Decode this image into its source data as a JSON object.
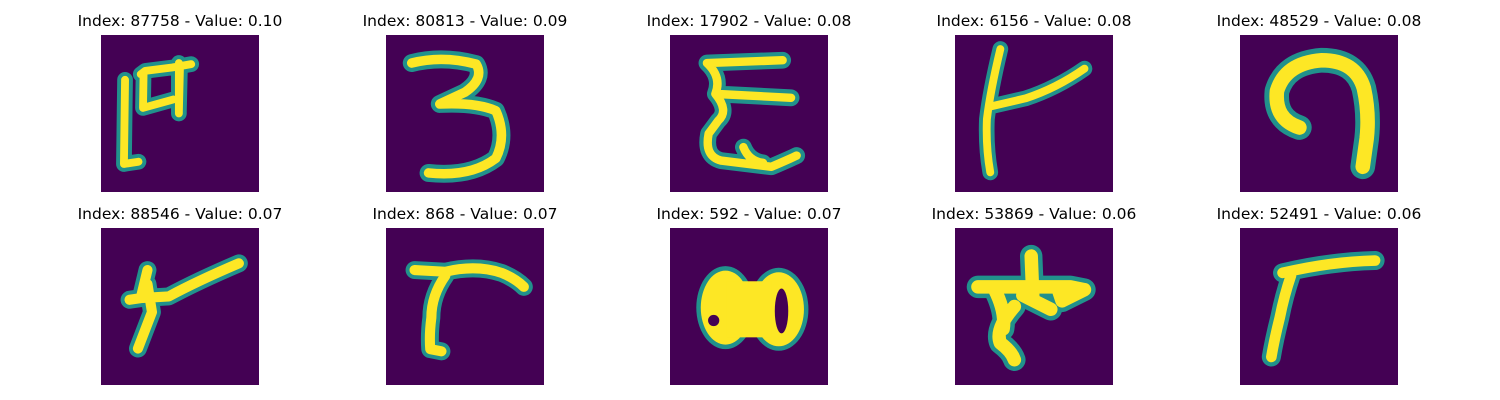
{
  "figure": {
    "colormap": "viridis",
    "colors": {
      "background": "#440154",
      "stroke_edge": "#21918c",
      "stroke_mid": "#5ec962",
      "stroke_core": "#fde725"
    },
    "panels": [
      {
        "title": "Index: 87758 - Value: 0.10",
        "index": 87758,
        "value": 0.1
      },
      {
        "title": "Index: 80813 - Value: 0.09",
        "index": 80813,
        "value": 0.09
      },
      {
        "title": "Index: 17902 - Value: 0.08",
        "index": 17902,
        "value": 0.08
      },
      {
        "title": "Index: 6156 - Value: 0.08",
        "index": 6156,
        "value": 0.08
      },
      {
        "title": "Index: 48529 - Value: 0.08",
        "index": 48529,
        "value": 0.08
      },
      {
        "title": "Index: 88546 - Value: 0.07",
        "index": 88546,
        "value": 0.07
      },
      {
        "title": "Index: 868 - Value: 0.07",
        "index": 868,
        "value": 0.07
      },
      {
        "title": "Index: 592 - Value: 0.07",
        "index": 592,
        "value": 0.07
      },
      {
        "title": "Index: 53869 - Value: 0.06",
        "index": 53869,
        "value": 0.06
      },
      {
        "title": "Index: 52491 - Value: 0.06",
        "index": 52491,
        "value": 0.06
      }
    ]
  }
}
